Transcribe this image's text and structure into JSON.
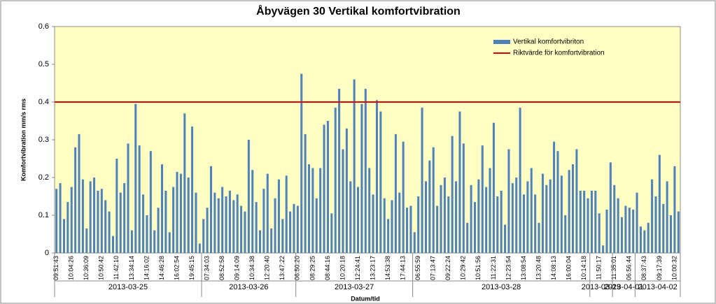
{
  "chart_data": {
    "type": "bar",
    "title": "Åbyvägen 30 Vertikal komfortvibration",
    "x_label": "Datum/tid",
    "y_label": "Komfortvibration mm/s rms",
    "ylim": [
      0,
      0.6
    ],
    "yticks": [
      0,
      0.1,
      0.2,
      0.3,
      0.4,
      0.5,
      0.6
    ],
    "legend": "top-right",
    "categories": [
      "09:51:43",
      null,
      null,
      null,
      "10:04:26",
      null,
      null,
      null,
      "10:36:09",
      null,
      null,
      null,
      "10:50:42",
      null,
      null,
      null,
      "11:42:10",
      null,
      null,
      null,
      "13:34:14",
      null,
      null,
      null,
      "14:16:02",
      null,
      null,
      null,
      "14:46:28",
      null,
      null,
      null,
      "16:02:54",
      null,
      null,
      null,
      "19:45:15",
      null,
      null,
      null,
      "07:34:03",
      null,
      null,
      null,
      "08:52:58",
      null,
      null,
      null,
      "09:14:09",
      null,
      null,
      null,
      "10:34:38",
      null,
      null,
      null,
      "12:20:40",
      null,
      null,
      null,
      "13:47:22",
      null,
      null,
      null,
      "06:50:20",
      null,
      null,
      null,
      "08:29:25",
      null,
      null,
      null,
      "08:44:16",
      null,
      null,
      null,
      "10:20:18",
      null,
      null,
      null,
      "12:24:41",
      null,
      null,
      null,
      "13:23:17",
      null,
      null,
      null,
      "14:53:38",
      null,
      null,
      null,
      "17:44:13",
      null,
      null,
      null,
      "06:55:59",
      null,
      null,
      null,
      "07:13:47",
      null,
      null,
      null,
      "09:22:24",
      null,
      null,
      null,
      "10:29:42",
      null,
      null,
      null,
      "10:51:56",
      null,
      null,
      null,
      "11:22:31",
      null,
      null,
      null,
      "12:23:54",
      null,
      null,
      null,
      "13:08:54",
      null,
      null,
      null,
      "13:20:48",
      null,
      null,
      null,
      "14:08:13",
      null,
      null,
      null,
      "16:00:04",
      null,
      null,
      null,
      "10:14:18",
      null,
      null,
      null,
      "11:50:17",
      null,
      null,
      null,
      "11:35:01",
      null,
      null,
      null,
      "06:56:44",
      null,
      null,
      null,
      "08:37:43",
      null,
      null,
      null,
      "09:17:39",
      null,
      null,
      null,
      "10:00:32",
      null
    ],
    "category_groups": [
      {
        "label": "2013-03-25",
        "count": 39
      },
      {
        "label": "2013-03-26",
        "count": 25
      },
      {
        "label": "2013-03-27",
        "count": 31
      },
      {
        "label": "2013-03-28",
        "count": 47
      },
      {
        "label": "2013-03-29",
        "count": 6
      },
      {
        "label": "2013-04-01",
        "count": 6
      },
      {
        "label": "2013-04-02",
        "count": 12
      }
    ],
    "series": [
      {
        "name": "Vertikal komfortvibriton",
        "color": "#4f81bd",
        "values": [
          0.17,
          0.185,
          0.09,
          0.135,
          0.175,
          0.28,
          0.315,
          0.195,
          0.065,
          0.19,
          0.2,
          0.165,
          0.17,
          0.14,
          0.11,
          0.045,
          0.25,
          0.16,
          0.185,
          0.29,
          0.06,
          0.395,
          0.285,
          0.155,
          0.1,
          0.27,
          0.06,
          0.12,
          0.235,
          0.165,
          0.055,
          0.175,
          0.215,
          0.21,
          0.37,
          0.2,
          0.335,
          0.16,
          0.025,
          0.09,
          0.12,
          0.23,
          0.16,
          0.145,
          0.175,
          0.15,
          0.165,
          0.14,
          0.155,
          0.125,
          0.11,
          0.3,
          0.22,
          0.135,
          0.06,
          0.17,
          0.21,
          0.065,
          0.145,
          0.195,
          0.09,
          0.205,
          0.11,
          0.13,
          0.125,
          0.475,
          0.315,
          0.235,
          0.225,
          0.145,
          0.225,
          0.34,
          0.35,
          0.105,
          0.385,
          0.435,
          0.275,
          0.33,
          0.19,
          0.46,
          0.175,
          0.395,
          0.435,
          0.225,
          0.155,
          0.405,
          0.375,
          0.145,
          0.09,
          0.14,
          0.315,
          0.16,
          0.295,
          0.12,
          0.125,
          0.055,
          0.15,
          0.385,
          0.19,
          0.245,
          0.28,
          0.125,
          0.18,
          0.2,
          0.15,
          0.31,
          0.19,
          0.375,
          0.29,
          0.08,
          0.18,
          0.135,
          0.195,
          0.285,
          0.175,
          0.225,
          0.345,
          0.15,
          0.165,
          0.075,
          0.275,
          0.185,
          0.2,
          0.385,
          0.155,
          0.19,
          0.225,
          0.155,
          0.08,
          0.21,
          0.18,
          0.195,
          0.295,
          0.27,
          0.205,
          0.1,
          0.22,
          0.235,
          0.275,
          0.165,
          0.165,
          0.145,
          0.165,
          0.165,
          0.105,
          0.02,
          0.115,
          0.24,
          0.18,
          0.145,
          0.095,
          0.125,
          0.12,
          0.115,
          0.16,
          0.07,
          0.06,
          0.08,
          0.195,
          0.15,
          0.26,
          0.13,
          0.19,
          0.1,
          0.23,
          0.11
        ]
      }
    ],
    "reference_line": {
      "name": "Riktvärde för komfortvibration",
      "value": 0.4,
      "color": "#e00000"
    }
  }
}
